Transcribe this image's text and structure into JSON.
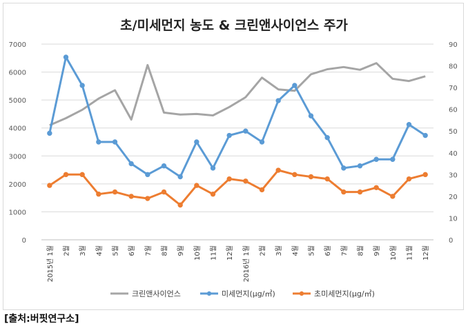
{
  "chart_data": {
    "type": "line",
    "title": "초/미세먼지 농도 & 크린앤사이언스 주가",
    "x_labels": [
      "2015년 1월",
      "2월",
      "3월",
      "4월",
      "5월",
      "6월",
      "7월",
      "8월",
      "9월",
      "10월",
      "11월",
      "12월",
      "2016년 1월",
      "2월",
      "3월",
      "4월",
      "5월",
      "6월",
      "7월",
      "8월",
      "9월",
      "10월",
      "11월",
      "12월"
    ],
    "y_left": {
      "ticks": [
        0,
        1000,
        2000,
        3000,
        4000,
        5000,
        6000,
        7000
      ],
      "range": [
        0,
        7000
      ]
    },
    "y_right": {
      "ticks": [
        0,
        10,
        20,
        30,
        40,
        50,
        60,
        70,
        80,
        90
      ],
      "range": [
        0,
        90
      ]
    },
    "grid": true,
    "legend_position": "bottom",
    "series": [
      {
        "name": "크린앤사이언스",
        "axis": "left",
        "color": "#a5a5a5",
        "marker": false,
        "values": [
          4100,
          4350,
          4650,
          5050,
          5350,
          4300,
          6250,
          4550,
          4480,
          4500,
          4450,
          4750,
          5100,
          5800,
          5380,
          5330,
          5920,
          6100,
          6180,
          6080,
          6320,
          5760,
          5680,
          5850
        ]
      },
      {
        "name": "미세먼지(μg/㎥)",
        "axis": "right",
        "color": "#5b9bd5",
        "marker": true,
        "values": [
          49,
          84,
          71,
          45,
          45,
          35,
          30,
          34,
          29,
          45,
          33,
          48,
          50,
          45,
          64,
          71,
          57,
          47,
          33,
          34,
          37,
          37,
          53,
          48
        ]
      },
      {
        "name": "초미세먼지(μg/㎥)",
        "axis": "right",
        "color": "#ed7d31",
        "marker": true,
        "values": [
          25,
          30,
          30,
          21,
          22,
          20,
          19,
          22,
          16,
          25,
          21,
          28,
          27,
          23,
          32,
          30,
          29,
          28,
          22,
          22,
          24,
          20,
          28,
          30
        ]
      }
    ]
  },
  "source_note": "[출처:버핏연구소]"
}
